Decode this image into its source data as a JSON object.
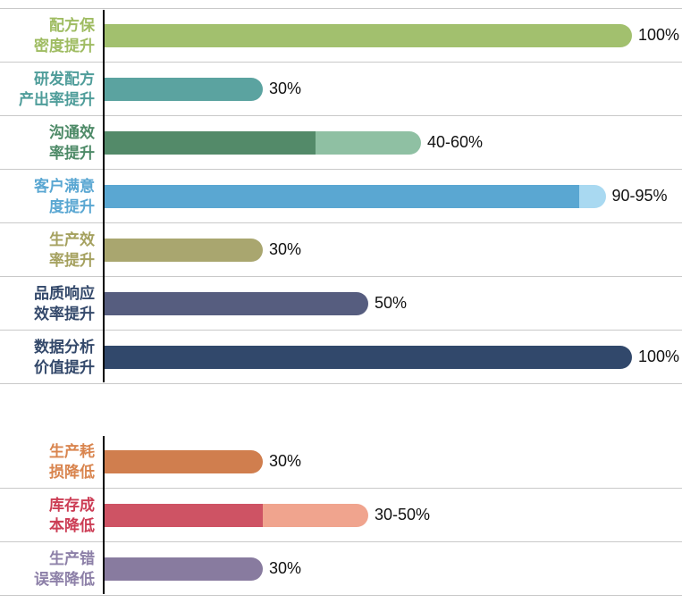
{
  "chart_data": {
    "type": "bar",
    "orientation": "horizontal",
    "unit": "percent",
    "x_axis": {
      "min": 0,
      "max": 100,
      "ticks_visible": false
    },
    "axis_color": "#000000",
    "divider_color": "#c9c9c9",
    "groups": [
      {
        "name": "improvements",
        "rows": [
          {
            "label": "配方保密度提升",
            "label_line1": "配方保",
            "label_line2": "密度提升",
            "label_color": "#9fbc62",
            "value_label": "100%",
            "value_min": 100,
            "value_max": 100,
            "segments": [
              {
                "color": "#a2c06e",
                "from": 0,
                "to": 100
              }
            ]
          },
          {
            "label": "研发配方产出率提升",
            "label_line1": "研发配方",
            "label_line2": "产出率提升",
            "label_color": "#4f9d9a",
            "value_label": "30%",
            "value_min": 30,
            "value_max": 30,
            "segments": [
              {
                "color": "#5ba3a0",
                "from": 0,
                "to": 30
              }
            ]
          },
          {
            "label": "沟通效率提升",
            "label_line1": "沟通效",
            "label_line2": "率提升",
            "label_color": "#4d8a67",
            "value_label": "40-60%",
            "value_min": 40,
            "value_max": 60,
            "segments": [
              {
                "color": "#538a69",
                "from": 0,
                "to": 40
              },
              {
                "color": "#8fc0a3",
                "from": 40,
                "to": 60
              }
            ]
          },
          {
            "label": "客户满意度提升",
            "label_line1": "客户满意",
            "label_line2": "度提升",
            "label_color": "#5aa7d2",
            "value_label": "90-95%",
            "value_min": 90,
            "value_max": 95,
            "segments": [
              {
                "color": "#5aa7d2",
                "from": 0,
                "to": 90
              },
              {
                "color": "#a9d9f1",
                "from": 90,
                "to": 95
              }
            ]
          },
          {
            "label": "生产效率提升",
            "label_line1": "生产效",
            "label_line2": "率提升",
            "label_color": "#a5a15f",
            "value_label": "30%",
            "value_min": 30,
            "value_max": 30,
            "segments": [
              {
                "color": "#a9a66f",
                "from": 0,
                "to": 30
              }
            ]
          },
          {
            "label": "品质响应效率提升",
            "label_line1": "品质响应",
            "label_line2": "效率提升",
            "label_color": "#34496b",
            "value_label": "50%",
            "value_min": 50,
            "value_max": 50,
            "segments": [
              {
                "color": "#565d7f",
                "from": 0,
                "to": 50
              }
            ]
          },
          {
            "label": "数据分析价值提升",
            "label_line1": "数据分析",
            "label_line2": "价值提升",
            "label_color": "#34496b",
            "value_label": "100%",
            "value_min": 100,
            "value_max": 100,
            "segments": [
              {
                "color": "#31486b",
                "from": 0,
                "to": 100
              }
            ]
          }
        ]
      },
      {
        "name": "reductions",
        "rows": [
          {
            "label": "生产耗损降低",
            "label_line1": "生产耗",
            "label_line2": "损降低",
            "label_color": "#d9854f",
            "value_label": "30%",
            "value_min": 30,
            "value_max": 30,
            "segments": [
              {
                "color": "#d07e4e",
                "from": 0,
                "to": 30
              }
            ]
          },
          {
            "label": "库存成本降低",
            "label_line1": "库存成",
            "label_line2": "本降低",
            "label_color": "#cc3d55",
            "value_label": "30-50%",
            "value_min": 30,
            "value_max": 50,
            "segments": [
              {
                "color": "#ce5364",
                "from": 0,
                "to": 30
              },
              {
                "color": "#f0a48e",
                "from": 30,
                "to": 50
              }
            ]
          },
          {
            "label": "生产错误率降低",
            "label_line1": "生产错",
            "label_line2": "误率降低",
            "label_color": "#8d80a8",
            "value_label": "30%",
            "value_min": 30,
            "value_max": 30,
            "segments": [
              {
                "color": "#887b9f",
                "from": 0,
                "to": 30
              }
            ]
          }
        ]
      }
    ]
  }
}
